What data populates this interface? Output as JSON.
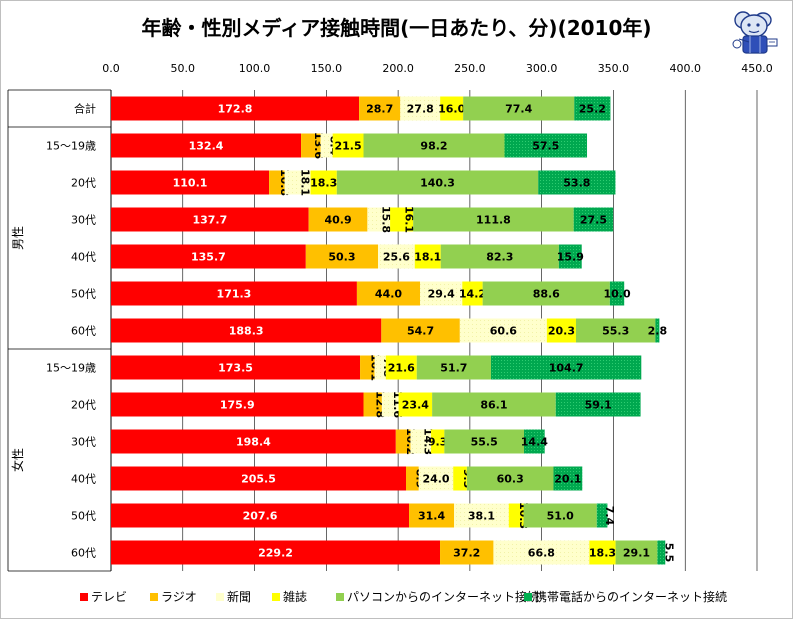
{
  "chart_data": {
    "type": "bar",
    "orientation": "horizontal",
    "stacked": true,
    "title": "年齢・性別メディア接触時間(一日あたり、分)(2010年)",
    "x_ticks": [
      "0.0",
      "50.0",
      "100.0",
      "150.0",
      "200.0",
      "250.0",
      "300.0",
      "350.0",
      "400.0",
      "450.0"
    ],
    "xlim": [
      0,
      450
    ],
    "grid": true,
    "categories": [
      "合計",
      "15〜19歳",
      "20代",
      "30代",
      "40代",
      "50代",
      "60代",
      "15〜19歳",
      "20代",
      "30代",
      "40代",
      "50代",
      "60代"
    ],
    "groups": [
      {
        "label": "男性",
        "start": 1,
        "end": 6
      },
      {
        "label": "女性",
        "start": 7,
        "end": 12
      }
    ],
    "series": [
      {
        "name": "テレビ",
        "color": "#ff0000",
        "values": [
          172.8,
          132.4,
          110.1,
          137.7,
          135.7,
          171.3,
          188.3,
          173.5,
          175.9,
          198.4,
          205.5,
          207.6,
          229.2
        ]
      },
      {
        "name": "ラジオ",
        "color": "#ffc000",
        "values": [
          28.7,
          13.6,
          10.8,
          40.9,
          50.3,
          44.0,
          54.7,
          10.1,
          12.8,
          10.2,
          8.9,
          31.4,
          37.2
        ]
      },
      {
        "name": "新聞",
        "color": "#ffffcc",
        "values": [
          27.8,
          8.4,
          18.1,
          15.8,
          25.6,
          29.4,
          60.6,
          7.8,
          11.6,
          14.3,
          24.0,
          38.1,
          66.8
        ]
      },
      {
        "name": "雑誌",
        "color": "#ffff00",
        "values": [
          16.0,
          21.5,
          18.3,
          16.1,
          18.1,
          14.2,
          20.3,
          21.6,
          23.4,
          9.3,
          9.5,
          10.3,
          18.3
        ]
      },
      {
        "name": "パソコンからのインターネット接続",
        "color": "#92d050",
        "values": [
          77.4,
          98.2,
          140.3,
          111.8,
          82.3,
          88.6,
          55.3,
          51.7,
          86.1,
          55.5,
          60.3,
          51.0,
          29.1
        ]
      },
      {
        "name": "携帯電話からのインターネット接続",
        "color": "#00b050",
        "values": [
          25.2,
          57.5,
          53.8,
          27.5,
          15.9,
          10.0,
          2.8,
          104.7,
          59.1,
          14.4,
          20.1,
          7.4,
          5.5
        ]
      }
    ],
    "label_rotated": [
      [
        false,
        false,
        false,
        false,
        false,
        false
      ],
      [
        false,
        true,
        true,
        false,
        false,
        false
      ],
      [
        false,
        true,
        true,
        false,
        false,
        false
      ],
      [
        false,
        false,
        true,
        true,
        false,
        false
      ],
      [
        false,
        false,
        false,
        false,
        false,
        false
      ],
      [
        false,
        false,
        false,
        false,
        false,
        false
      ],
      [
        false,
        false,
        false,
        false,
        false,
        false
      ],
      [
        false,
        true,
        true,
        false,
        false,
        false
      ],
      [
        false,
        true,
        true,
        false,
        false,
        false
      ],
      [
        false,
        true,
        true,
        false,
        false,
        false
      ],
      [
        false,
        true,
        false,
        true,
        false,
        false
      ],
      [
        false,
        false,
        false,
        true,
        false,
        true
      ],
      [
        false,
        false,
        false,
        false,
        false,
        true
      ]
    ]
  }
}
